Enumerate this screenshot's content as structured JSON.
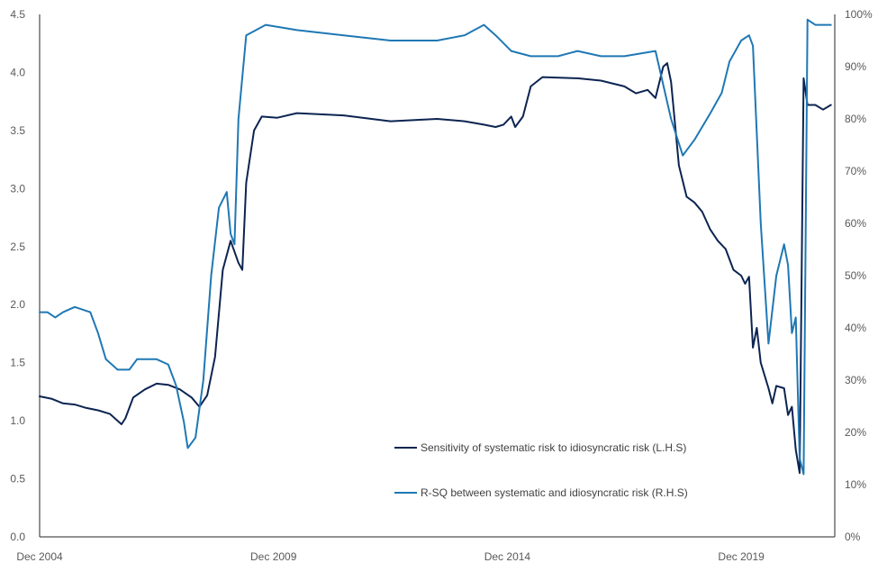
{
  "chart_data": {
    "type": "line",
    "title": "",
    "xlabel": "",
    "ylabel": "",
    "xlim": [
      "2004-12",
      "2021-12"
    ],
    "ylim": [
      0,
      4.5
    ],
    "y2lim": [
      0,
      1
    ],
    "grid": false,
    "legend_position": "bottom-center",
    "x_tick_labels": [
      "Dec 2004",
      "Dec 2009",
      "Dec 2014",
      "Dec 2019"
    ],
    "x_tick_values": [
      "2004-12",
      "2009-12",
      "2014-12",
      "2019-12"
    ],
    "y_left_tick_labels": [
      "0.0",
      "0.5",
      "1.0",
      "1.5",
      "2.0",
      "2.5",
      "3.0",
      "3.5",
      "4.0",
      "4.5"
    ],
    "y_left_tick_values": [
      0,
      0.5,
      1.0,
      1.5,
      2.0,
      2.5,
      3.0,
      3.5,
      4.0,
      4.5
    ],
    "y_right_tick_labels": [
      "0%",
      "10%",
      "20%",
      "30%",
      "40%",
      "50%",
      "60%",
      "70%",
      "80%",
      "90%",
      "100%"
    ],
    "y_right_tick_values": [
      0,
      0.1,
      0.2,
      0.3,
      0.4,
      0.5,
      0.6,
      0.7,
      0.8,
      0.9,
      1.0
    ],
    "colors": {
      "sensitivity": "#0c2451",
      "rsq": "#1f78b4",
      "axis": "#262626",
      "tick_text": "#595959"
    },
    "series": [
      {
        "name": "Sensitivity of systematic risk to idiosyncratic risk (L.H.S)",
        "axis": "left",
        "points": [
          [
            "2004-12",
            1.21
          ],
          [
            "2005-03",
            1.19
          ],
          [
            "2005-06",
            1.15
          ],
          [
            "2005-09",
            1.14
          ],
          [
            "2005-12",
            1.11
          ],
          [
            "2006-03",
            1.09
          ],
          [
            "2006-06",
            1.06
          ],
          [
            "2006-08",
            1.0
          ],
          [
            "2006-09",
            0.97
          ],
          [
            "2006-10",
            1.02
          ],
          [
            "2006-12",
            1.2
          ],
          [
            "2007-03",
            1.27
          ],
          [
            "2007-06",
            1.32
          ],
          [
            "2007-09",
            1.31
          ],
          [
            "2007-12",
            1.27
          ],
          [
            "2008-03",
            1.2
          ],
          [
            "2008-05",
            1.12
          ],
          [
            "2008-07",
            1.22
          ],
          [
            "2008-09",
            1.55
          ],
          [
            "2008-11",
            2.3
          ],
          [
            "2009-01",
            2.55
          ],
          [
            "2009-03",
            2.36
          ],
          [
            "2009-04",
            2.3
          ],
          [
            "2009-05",
            3.05
          ],
          [
            "2009-07",
            3.5
          ],
          [
            "2009-09",
            3.62
          ],
          [
            "2010-01",
            3.61
          ],
          [
            "2010-06",
            3.65
          ],
          [
            "2011-06",
            3.63
          ],
          [
            "2012-06",
            3.58
          ],
          [
            "2013-06",
            3.6
          ],
          [
            "2014-01",
            3.58
          ],
          [
            "2014-06",
            3.55
          ],
          [
            "2014-09",
            3.53
          ],
          [
            "2014-11",
            3.55
          ],
          [
            "2015-01",
            3.62
          ],
          [
            "2015-02",
            3.53
          ],
          [
            "2015-04",
            3.62
          ],
          [
            "2015-06",
            3.88
          ],
          [
            "2015-09",
            3.96
          ],
          [
            "2016-06",
            3.95
          ],
          [
            "2016-12",
            3.93
          ],
          [
            "2017-06",
            3.88
          ],
          [
            "2017-09",
            3.82
          ],
          [
            "2017-12",
            3.85
          ],
          [
            "2018-02",
            3.78
          ],
          [
            "2018-04",
            4.05
          ],
          [
            "2018-05",
            4.08
          ],
          [
            "2018-06",
            3.92
          ],
          [
            "2018-08",
            3.2
          ],
          [
            "2018-10",
            2.93
          ],
          [
            "2018-12",
            2.88
          ],
          [
            "2019-02",
            2.8
          ],
          [
            "2019-04",
            2.65
          ],
          [
            "2019-06",
            2.55
          ],
          [
            "2019-08",
            2.48
          ],
          [
            "2019-10",
            2.3
          ],
          [
            "2019-12",
            2.25
          ],
          [
            "2020-01",
            2.18
          ],
          [
            "2020-02",
            2.24
          ],
          [
            "2020-03",
            1.63
          ],
          [
            "2020-04",
            1.8
          ],
          [
            "2020-05",
            1.5
          ],
          [
            "2020-07",
            1.28
          ],
          [
            "2020-08",
            1.15
          ],
          [
            "2020-09",
            1.3
          ],
          [
            "2020-11",
            1.28
          ],
          [
            "2020-12",
            1.05
          ],
          [
            "2021-01",
            1.12
          ],
          [
            "2021-02",
            0.75
          ],
          [
            "2021-03",
            0.55
          ],
          [
            "2021-04",
            3.95
          ],
          [
            "2021-05",
            3.72
          ],
          [
            "2021-07",
            3.72
          ],
          [
            "2021-09",
            3.68
          ],
          [
            "2021-11",
            3.72
          ]
        ]
      },
      {
        "name": "R-SQ between systematic and idiosyncratic risk (R.H.S)",
        "axis": "right",
        "points": [
          [
            "2004-12",
            0.43
          ],
          [
            "2005-02",
            0.43
          ],
          [
            "2005-04",
            0.42
          ],
          [
            "2005-06",
            0.43
          ],
          [
            "2005-09",
            0.44
          ],
          [
            "2006-01",
            0.43
          ],
          [
            "2006-03",
            0.39
          ],
          [
            "2006-05",
            0.34
          ],
          [
            "2006-08",
            0.32
          ],
          [
            "2006-11",
            0.32
          ],
          [
            "2007-01",
            0.34
          ],
          [
            "2007-06",
            0.34
          ],
          [
            "2007-09",
            0.33
          ],
          [
            "2007-11",
            0.29
          ],
          [
            "2008-01",
            0.22
          ],
          [
            "2008-02",
            0.17
          ],
          [
            "2008-04",
            0.19
          ],
          [
            "2008-06",
            0.3
          ],
          [
            "2008-08",
            0.5
          ],
          [
            "2008-10",
            0.63
          ],
          [
            "2008-12",
            0.66
          ],
          [
            "2009-01",
            0.58
          ],
          [
            "2009-02",
            0.56
          ],
          [
            "2009-03",
            0.8
          ],
          [
            "2009-05",
            0.96
          ],
          [
            "2009-10",
            0.98
          ],
          [
            "2010-06",
            0.97
          ],
          [
            "2011-06",
            0.96
          ],
          [
            "2012-06",
            0.95
          ],
          [
            "2013-06",
            0.95
          ],
          [
            "2014-01",
            0.96
          ],
          [
            "2014-06",
            0.98
          ],
          [
            "2014-09",
            0.96
          ],
          [
            "2015-01",
            0.93
          ],
          [
            "2015-06",
            0.92
          ],
          [
            "2016-01",
            0.92
          ],
          [
            "2016-06",
            0.93
          ],
          [
            "2016-12",
            0.92
          ],
          [
            "2017-06",
            0.92
          ],
          [
            "2018-02",
            0.93
          ],
          [
            "2018-06",
            0.8
          ],
          [
            "2018-09",
            0.73
          ],
          [
            "2018-12",
            0.76
          ],
          [
            "2019-04",
            0.81
          ],
          [
            "2019-07",
            0.85
          ],
          [
            "2019-09",
            0.91
          ],
          [
            "2019-12",
            0.95
          ],
          [
            "2020-02",
            0.96
          ],
          [
            "2020-03",
            0.94
          ],
          [
            "2020-05",
            0.6
          ],
          [
            "2020-07",
            0.37
          ],
          [
            "2020-09",
            0.5
          ],
          [
            "2020-11",
            0.56
          ],
          [
            "2020-12",
            0.52
          ],
          [
            "2021-01",
            0.39
          ],
          [
            "2021-02",
            0.42
          ],
          [
            "2021-03",
            0.15
          ],
          [
            "2021-04",
            0.12
          ],
          [
            "2021-05",
            0.99
          ],
          [
            "2021-07",
            0.98
          ],
          [
            "2021-11",
            0.98
          ]
        ]
      }
    ]
  }
}
